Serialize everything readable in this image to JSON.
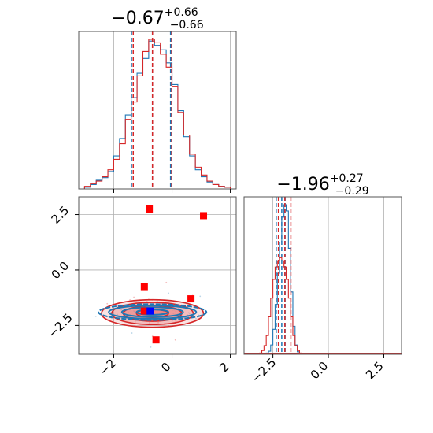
{
  "chart_data": [
    {
      "panel": "marginal-x",
      "type": "histogram",
      "title": {
        "value": "−0.67",
        "sup": "+0.66",
        "sub": "−0.66"
      },
      "xlim": [
        -3.2,
        2.2
      ],
      "grid": true,
      "series": [
        {
          "name": "",
          "color": "#1f77b4",
          "bins": [
            -3.0,
            -2.8,
            -2.6,
            -2.4,
            -2.2,
            -2.0,
            -1.8,
            -1.6,
            -1.4,
            -1.2,
            -1.0,
            -0.8,
            -0.6,
            -0.4,
            -0.2,
            0.0,
            0.2,
            0.4,
            0.6,
            0.8,
            1.0,
            1.2,
            1.4,
            1.6,
            1.8
          ],
          "counts": [
            2,
            5,
            10,
            13,
            20,
            38,
            58,
            85,
            105,
            133,
            150,
            170,
            165,
            160,
            145,
            120,
            90,
            60,
            38,
            22,
            14,
            8,
            5,
            3,
            2
          ],
          "quantiles": [
            -1.39,
            -0.67,
            -0.05
          ]
        },
        {
          "name": "",
          "color": "#d62728",
          "bins": [
            -3.0,
            -2.8,
            -2.6,
            -2.4,
            -2.2,
            -2.0,
            -1.8,
            -1.6,
            -1.4,
            -1.2,
            -1.0,
            -0.8,
            -0.6,
            -0.4,
            -0.2,
            0.0,
            0.2,
            0.4,
            0.6,
            0.8,
            1.0,
            1.2,
            1.4,
            1.6,
            1.8
          ],
          "counts": [
            3,
            6,
            9,
            14,
            22,
            34,
            52,
            80,
            100,
            130,
            158,
            172,
            168,
            155,
            140,
            118,
            88,
            62,
            40,
            25,
            16,
            9,
            5,
            3,
            2
          ],
          "quantiles": [
            -1.33,
            -0.67,
            -0.01
          ]
        }
      ]
    },
    {
      "panel": "marginal-y",
      "type": "histogram",
      "title": {
        "value": "−1.96",
        "sup": "+0.27",
        "sub": "−0.29"
      },
      "xlim": [
        -3.8,
        3.3
      ],
      "xticks": [
        "−2.5",
        "0.0",
        "2.5"
      ],
      "xtick_values": [
        -2.5,
        0.0,
        2.5
      ],
      "grid": true,
      "series": [
        {
          "name": "",
          "color": "#1f77b4",
          "bins": [
            -2.8,
            -2.7,
            -2.6,
            -2.5,
            -2.4,
            -2.3,
            -2.2,
            -2.1,
            -2.0,
            -1.9,
            -1.8,
            -1.7,
            -1.6,
            -1.5,
            -1.4
          ],
          "counts": [
            2,
            5,
            15,
            40,
            80,
            130,
            180,
            220,
            240,
            230,
            170,
            100,
            45,
            15,
            4
          ],
          "quantiles": [
            -2.35,
            -2.1,
            -1.95
          ]
        },
        {
          "name": "",
          "color": "#d62728",
          "bins": [
            -3.1,
            -3.0,
            -2.9,
            -2.8,
            -2.7,
            -2.6,
            -2.5,
            -2.4,
            -2.3,
            -2.2,
            -2.1,
            -2.0,
            -1.9,
            -1.8,
            -1.7,
            -1.6,
            -1.5,
            -1.4,
            -1.3,
            -1.2
          ],
          "counts": [
            2,
            6,
            14,
            30,
            60,
            90,
            120,
            140,
            150,
            155,
            150,
            140,
            120,
            90,
            60,
            30,
            14,
            6,
            2,
            1
          ],
          "quantiles": [
            -2.25,
            -1.96,
            -1.69
          ]
        }
      ]
    },
    {
      "panel": "joint",
      "type": "contour-scatter",
      "xlim": [
        -3.2,
        2.2
      ],
      "ylim": [
        -3.8,
        3.3
      ],
      "xticks": [
        "−2",
        "0",
        "2"
      ],
      "xtick_values": [
        -2,
        0,
        2
      ],
      "yticks": [
        "−2.5",
        "0.0",
        "2.5"
      ],
      "ytick_values": [
        -2.5,
        0.0,
        2.5
      ],
      "grid": true,
      "contours": [
        {
          "color": "#1f77b4",
          "center": [
            -0.67,
            -1.9
          ],
          "radii": [
            [
              0.55,
              0.12
            ],
            [
              1.05,
              0.22
            ],
            [
              1.5,
              0.3
            ],
            [
              1.85,
              0.36
            ]
          ]
        },
        {
          "color": "#d62728",
          "center": [
            -0.67,
            -1.96
          ],
          "radii": [
            [
              0.55,
              0.18
            ],
            [
              1.0,
              0.35
            ],
            [
              1.4,
              0.5
            ],
            [
              1.75,
              0.62
            ]
          ]
        }
      ],
      "markers": {
        "red_squares": [
          [
            -0.78,
            2.75
          ],
          [
            1.08,
            2.45
          ],
          [
            -0.95,
            -0.75
          ],
          [
            0.65,
            -1.3
          ],
          [
            -0.95,
            -1.85
          ],
          [
            -0.55,
            -3.15
          ]
        ],
        "blue_square": [
          -0.75,
          -1.85
        ]
      }
    }
  ]
}
